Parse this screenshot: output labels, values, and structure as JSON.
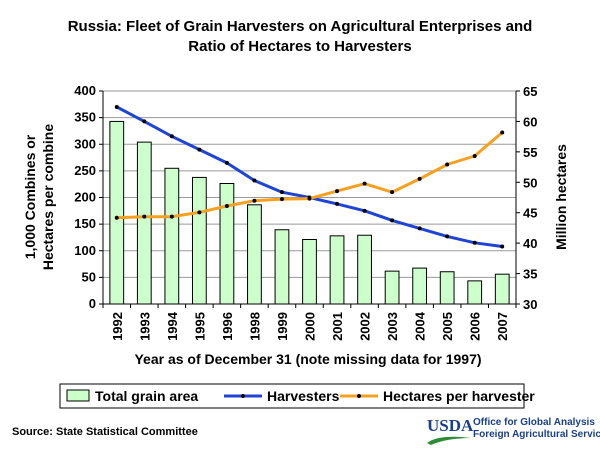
{
  "chart_data": {
    "type": "bar+line",
    "title": "Russia:  Fleet of Grain Harvesters on Agricultural Enterprises and",
    "subtitle": "Ratio of Hectares to Harvesters",
    "xlabel": "Year as of December 31 (note missing data for 1997)",
    "ylabel_left_line1": "1,000 Combines or",
    "ylabel_left_line2": "Hectares per combine",
    "ylabel_right": "Million hectares",
    "categories": [
      "1992",
      "1993",
      "1994",
      "1995",
      "1996",
      "1998",
      "1999",
      "2000",
      "2001",
      "2002",
      "2003",
      "2004",
      "2005",
      "2006",
      "2007"
    ],
    "ylim_left": [
      0,
      400
    ],
    "yticks_left": [
      0,
      50,
      100,
      150,
      200,
      250,
      300,
      350,
      400
    ],
    "ylim_right": [
      30,
      65
    ],
    "yticks_right": [
      30,
      35,
      40,
      45,
      50,
      55,
      60,
      65
    ],
    "grid": true,
    "legend_position": "bottom",
    "series": [
      {
        "name": "Total grain area",
        "type": "bar",
        "axis": "right",
        "color": "#ccffcc",
        "values": [
          60.0,
          56.6,
          52.3,
          50.8,
          49.8,
          46.3,
          42.2,
          40.6,
          41.2,
          41.3,
          35.4,
          35.9,
          35.3,
          33.8,
          34.9
        ]
      },
      {
        "name": "Harvesters",
        "type": "line",
        "axis": "left",
        "color": "#1f44d4",
        "values": [
          370,
          343,
          315,
          290,
          265,
          232,
          210,
          200,
          188,
          175,
          157,
          142,
          127,
          115,
          108
        ]
      },
      {
        "name": "Hectares per harvester",
        "type": "line",
        "axis": "left",
        "color": "#f5a01e",
        "values": [
          162,
          164,
          164,
          172,
          184,
          194,
          197,
          198,
          212,
          226,
          210,
          235,
          262,
          278,
          322
        ]
      }
    ]
  },
  "footer": {
    "source": "Source:  State Statistical Committee",
    "usda_logo": "USDA",
    "office_line1": "Office for Global Analysis",
    "office_line2": "Foreign Agricultural Service"
  },
  "colors": {
    "usda_blue": "#1a3f8c",
    "usda_green": "#2e8b3a"
  }
}
